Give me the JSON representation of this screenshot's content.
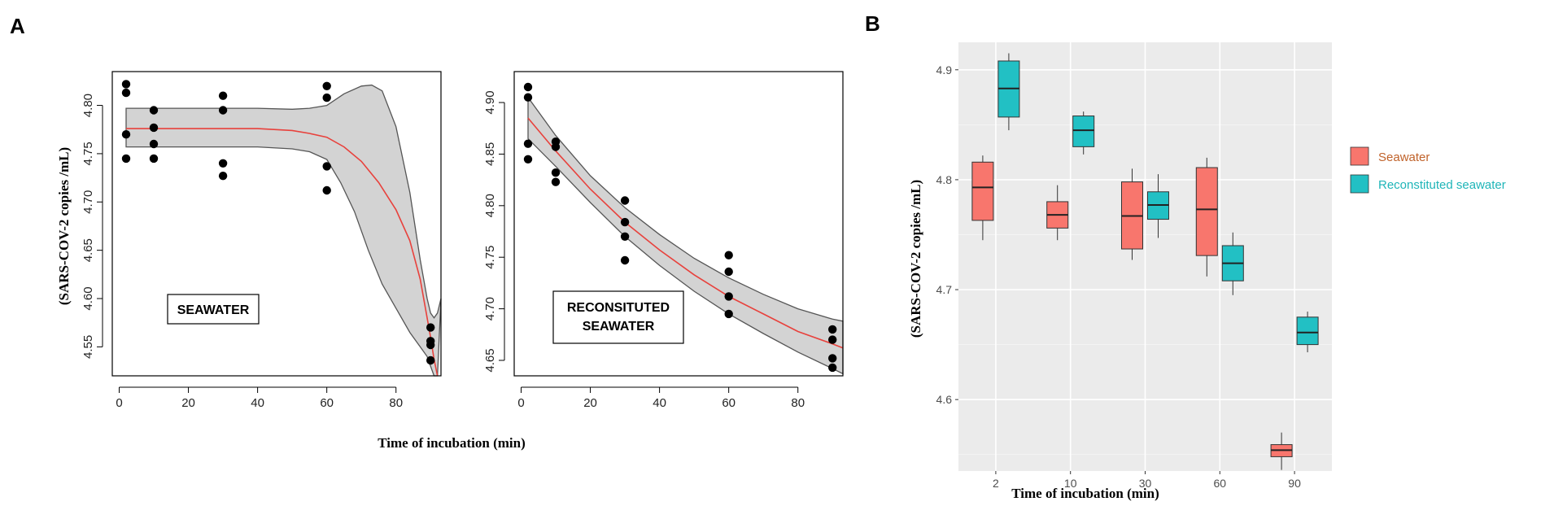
{
  "figure": {
    "panel_a_letter": "A",
    "panel_b_letter": "B"
  },
  "chart_data": [
    {
      "id": "A1",
      "type": "scatter",
      "panel_label": "SEAWATER",
      "ylabel": "(SARS-COV-2 copies /mL)",
      "xlabel": "Time of incubation (min)",
      "xlim": [
        -2,
        93
      ],
      "ylim": [
        4.52,
        4.835
      ],
      "xticks": [
        0,
        20,
        40,
        60,
        80
      ],
      "yticks": [
        4.55,
        4.6,
        4.65,
        4.7,
        4.75,
        4.8
      ],
      "ytick_labels": [
        "4.55",
        "4.60",
        "4.65",
        "4.70",
        "4.75",
        "4.80"
      ],
      "points": [
        [
          2,
          4.822
        ],
        [
          2,
          4.813
        ],
        [
          2,
          4.77
        ],
        [
          2,
          4.745
        ],
        [
          10,
          4.795
        ],
        [
          10,
          4.777
        ],
        [
          10,
          4.76
        ],
        [
          10,
          4.745
        ],
        [
          30,
          4.81
        ],
        [
          30,
          4.795
        ],
        [
          30,
          4.74
        ],
        [
          30,
          4.727
        ],
        [
          60,
          4.82
        ],
        [
          60,
          4.808
        ],
        [
          60,
          4.737
        ],
        [
          60,
          4.712
        ],
        [
          90,
          4.57
        ],
        [
          90,
          4.556
        ],
        [
          90,
          4.552
        ],
        [
          90,
          4.536
        ]
      ],
      "fit": [
        [
          2,
          4.776
        ],
        [
          20,
          4.776
        ],
        [
          40,
          4.776
        ],
        [
          50,
          4.774
        ],
        [
          55,
          4.771
        ],
        [
          60,
          4.767
        ],
        [
          65,
          4.757
        ],
        [
          70,
          4.742
        ],
        [
          75,
          4.72
        ],
        [
          80,
          4.692
        ],
        [
          84,
          4.66
        ],
        [
          87,
          4.62
        ],
        [
          89,
          4.58
        ],
        [
          90,
          4.56
        ],
        [
          91,
          4.537
        ],
        [
          92,
          4.515
        ]
      ],
      "upper": [
        [
          2,
          4.797
        ],
        [
          20,
          4.797
        ],
        [
          40,
          4.797
        ],
        [
          50,
          4.796
        ],
        [
          55,
          4.797
        ],
        [
          60,
          4.8
        ],
        [
          65,
          4.812
        ],
        [
          70,
          4.82
        ],
        [
          73,
          4.821
        ],
        [
          76,
          4.815
        ],
        [
          80,
          4.778
        ],
        [
          84,
          4.71
        ],
        [
          87,
          4.64
        ],
        [
          89,
          4.6
        ],
        [
          90,
          4.585
        ],
        [
          91,
          4.58
        ],
        [
          92,
          4.585
        ],
        [
          93,
          4.6
        ]
      ],
      "lower": [
        [
          2,
          4.757
        ],
        [
          20,
          4.757
        ],
        [
          40,
          4.757
        ],
        [
          50,
          4.755
        ],
        [
          55,
          4.752
        ],
        [
          60,
          4.744
        ],
        [
          64,
          4.72
        ],
        [
          68,
          4.69
        ],
        [
          72,
          4.65
        ],
        [
          76,
          4.615
        ],
        [
          80,
          4.59
        ],
        [
          84,
          4.565
        ],
        [
          87,
          4.55
        ],
        [
          89,
          4.54
        ],
        [
          90,
          4.53
        ],
        [
          91,
          4.52
        ],
        [
          92,
          4.51
        ]
      ]
    },
    {
      "id": "A2",
      "type": "scatter",
      "panel_label_lines": [
        "RECONSITUTED",
        "SEAWATER"
      ],
      "xlim": [
        -2,
        93
      ],
      "ylim": [
        4.635,
        4.93
      ],
      "xticks": [
        0,
        20,
        40,
        60,
        80
      ],
      "yticks": [
        4.65,
        4.7,
        4.75,
        4.8,
        4.85,
        4.9
      ],
      "ytick_labels": [
        "4.65",
        "4.70",
        "4.75",
        "4.80",
        "4.85",
        "4.90"
      ],
      "points": [
        [
          2,
          4.915
        ],
        [
          2,
          4.905
        ],
        [
          2,
          4.86
        ],
        [
          2,
          4.845
        ],
        [
          10,
          4.862
        ],
        [
          10,
          4.857
        ],
        [
          10,
          4.832
        ],
        [
          10,
          4.823
        ],
        [
          30,
          4.805
        ],
        [
          30,
          4.784
        ],
        [
          30,
          4.77
        ],
        [
          30,
          4.747
        ],
        [
          60,
          4.752
        ],
        [
          60,
          4.736
        ],
        [
          60,
          4.712
        ],
        [
          60,
          4.695
        ],
        [
          90,
          4.68
        ],
        [
          90,
          4.67
        ],
        [
          90,
          4.652
        ],
        [
          90,
          4.643
        ]
      ],
      "fit": [
        [
          2,
          4.885
        ],
        [
          10,
          4.853
        ],
        [
          20,
          4.816
        ],
        [
          30,
          4.784
        ],
        [
          40,
          4.757
        ],
        [
          50,
          4.733
        ],
        [
          60,
          4.712
        ],
        [
          70,
          4.695
        ],
        [
          80,
          4.678
        ],
        [
          90,
          4.666
        ],
        [
          93,
          4.662
        ]
      ],
      "upper": [
        [
          2,
          4.905
        ],
        [
          10,
          4.868
        ],
        [
          20,
          4.829
        ],
        [
          30,
          4.798
        ],
        [
          40,
          4.772
        ],
        [
          50,
          4.749
        ],
        [
          60,
          4.73
        ],
        [
          70,
          4.714
        ],
        [
          80,
          4.7
        ],
        [
          90,
          4.69
        ],
        [
          93,
          4.688
        ]
      ],
      "lower": [
        [
          2,
          4.865
        ],
        [
          10,
          4.838
        ],
        [
          20,
          4.803
        ],
        [
          30,
          4.77
        ],
        [
          40,
          4.742
        ],
        [
          50,
          4.717
        ],
        [
          60,
          4.695
        ],
        [
          70,
          4.676
        ],
        [
          80,
          4.658
        ],
        [
          90,
          4.642
        ],
        [
          93,
          4.637
        ]
      ]
    },
    {
      "id": "B",
      "type": "box",
      "ylabel": "(SARS-COV-2 copies /mL)",
      "xlabel": "Time of incubation (min)",
      "categories": [
        "2",
        "10",
        "30",
        "60",
        "90"
      ],
      "ylim": [
        4.535,
        4.925
      ],
      "yticks": [
        4.6,
        4.7,
        4.8,
        4.9
      ],
      "ytick_labels": [
        "4.6",
        "4.7",
        "4.8",
        "4.9"
      ],
      "legend": [
        {
          "label": "Seawater",
          "fill": "#f8766d",
          "text_color": "#c0622a"
        },
        {
          "label": "Reconstituted seawater",
          "fill": "#22c0c4",
          "text_color": "#1fb5b8"
        }
      ],
      "series": [
        {
          "name": "Seawater",
          "color": "#f8766d",
          "boxes": [
            {
              "cat": "2",
              "min": 4.745,
              "q1": 4.763,
              "median": 4.793,
              "q3": 4.816,
              "max": 4.822
            },
            {
              "cat": "10",
              "min": 4.745,
              "q1": 4.756,
              "median": 4.768,
              "q3": 4.78,
              "max": 4.795
            },
            {
              "cat": "30",
              "min": 4.727,
              "q1": 4.737,
              "median": 4.767,
              "q3": 4.798,
              "max": 4.81
            },
            {
              "cat": "60",
              "min": 4.712,
              "q1": 4.731,
              "median": 4.773,
              "q3": 4.811,
              "max": 4.82
            },
            {
              "cat": "90",
              "min": 4.536,
              "q1": 4.548,
              "median": 4.554,
              "q3": 4.559,
              "max": 4.57
            }
          ]
        },
        {
          "name": "Reconstituted seawater",
          "color": "#22c0c4",
          "boxes": [
            {
              "cat": "2",
              "min": 4.845,
              "q1": 4.857,
              "median": 4.883,
              "q3": 4.908,
              "max": 4.915
            },
            {
              "cat": "10",
              "min": 4.823,
              "q1": 4.83,
              "median": 4.845,
              "q3": 4.858,
              "max": 4.862
            },
            {
              "cat": "30",
              "min": 4.747,
              "q1": 4.764,
              "median": 4.777,
              "q3": 4.789,
              "max": 4.805
            },
            {
              "cat": "60",
              "min": 4.695,
              "q1": 4.708,
              "median": 4.724,
              "q3": 4.74,
              "max": 4.752
            },
            {
              "cat": "90",
              "min": 4.643,
              "q1": 4.65,
              "median": 4.661,
              "q3": 4.675,
              "max": 4.68
            }
          ]
        }
      ]
    }
  ]
}
